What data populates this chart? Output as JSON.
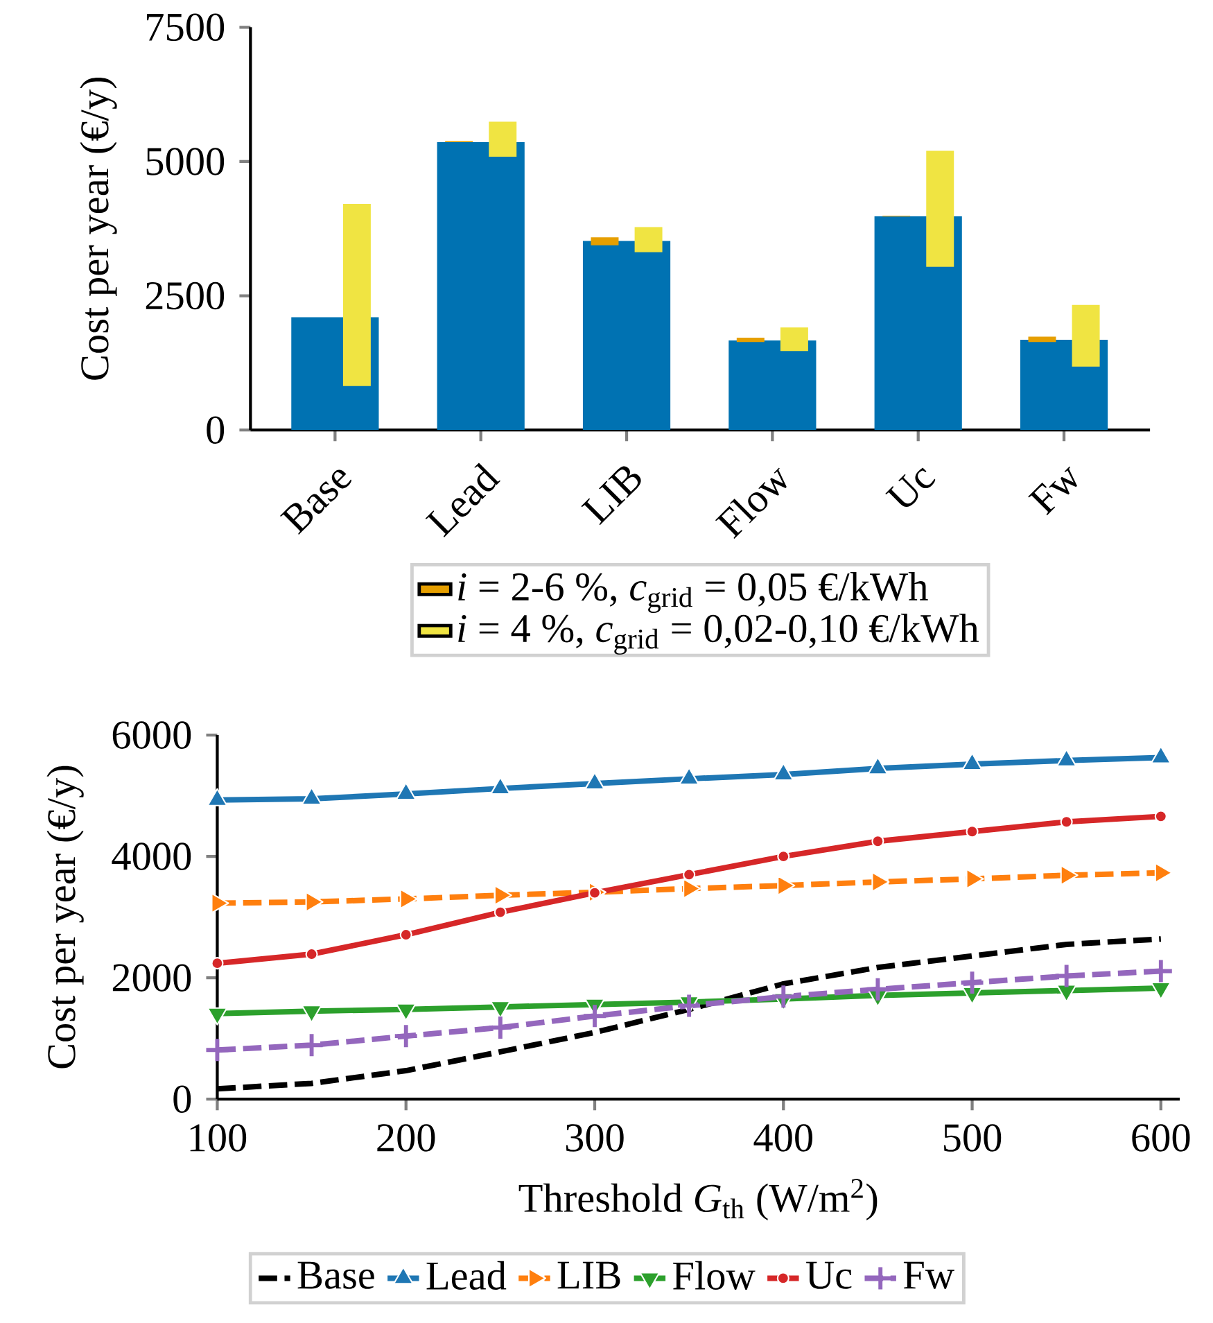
{
  "chart_data": [
    {
      "type": "bar",
      "ylabel": "Cost per year (€/y)",
      "categories": [
        "Base",
        "Lead",
        "LIB",
        "Flow",
        "Uc",
        "Fw"
      ],
      "series": [
        {
          "color": "#0072b2",
          "values": [
            2100,
            5360,
            3520,
            1670,
            3980,
            1680
          ]
        },
        {
          "name": "*i* = 2-6 %, *c*$_{grid}$ = 0,05 €/kWh",
          "color": "#e69f00",
          "base": [
            null,
            5360,
            3440,
            1640,
            3975,
            1640
          ],
          "values": [
            null,
            20,
            150,
            80,
            15,
            100
          ]
        },
        {
          "name": "*i* = 4 %, *c*$_{grid}$ = 0,02-0,10 €/kWh",
          "color": "#f0e442",
          "base": [
            820,
            5090,
            3310,
            1470,
            3040,
            1180
          ],
          "values": [
            3390,
            650,
            470,
            440,
            2160,
            1150
          ]
        }
      ],
      "ylim": [
        0,
        7500
      ],
      "yticks": [
        0,
        2500,
        5000,
        7500
      ],
      "legend": "bottom"
    },
    {
      "type": "line",
      "xlabel": "Threshold *G*$_{th}$ (W/m$^{2}$)",
      "ylabel": "Cost per year (€/y)",
      "x": [
        100,
        150,
        200,
        250,
        300,
        350,
        400,
        450,
        500,
        550,
        600
      ],
      "series": [
        {
          "name": "Base",
          "color": "#000000",
          "line_style": "dashed",
          "marker": "none",
          "values": [
            170,
            260,
            470,
            780,
            1100,
            1480,
            1900,
            2170,
            2360,
            2550,
            2640
          ]
        },
        {
          "name": "Lead",
          "color": "#1f77b4",
          "line_style": "solid",
          "marker": "triangle",
          "values": [
            4930,
            4950,
            5030,
            5120,
            5200,
            5280,
            5350,
            5450,
            5520,
            5580,
            5630
          ]
        },
        {
          "name": "LIB",
          "color": "#ff7f0e",
          "line_style": "dashed",
          "marker": "triangle-right",
          "values": [
            3230,
            3250,
            3300,
            3360,
            3410,
            3470,
            3520,
            3580,
            3630,
            3690,
            3730
          ]
        },
        {
          "name": "Flow",
          "color": "#2ca02c",
          "line_style": "solid",
          "marker": "triangle-down",
          "values": [
            1410,
            1450,
            1480,
            1520,
            1560,
            1600,
            1650,
            1710,
            1750,
            1790,
            1830
          ]
        },
        {
          "name": "Uc",
          "color": "#d62728",
          "line_style": "solid",
          "marker": "circle",
          "values": [
            2240,
            2390,
            2710,
            3080,
            3400,
            3700,
            4000,
            4250,
            4410,
            4570,
            4660
          ]
        },
        {
          "name": "Fw",
          "color": "#9467bd",
          "line_style": "dashed",
          "marker": "cross",
          "values": [
            810,
            890,
            1040,
            1180,
            1370,
            1540,
            1690,
            1810,
            1920,
            2030,
            2110
          ]
        }
      ],
      "xlim": [
        100,
        610
      ],
      "xticks": [
        100,
        200,
        300,
        400,
        500,
        600
      ],
      "ylim": [
        0,
        6000
      ],
      "yticks": [
        0,
        2000,
        4000,
        6000
      ],
      "legend": "bottom"
    }
  ]
}
